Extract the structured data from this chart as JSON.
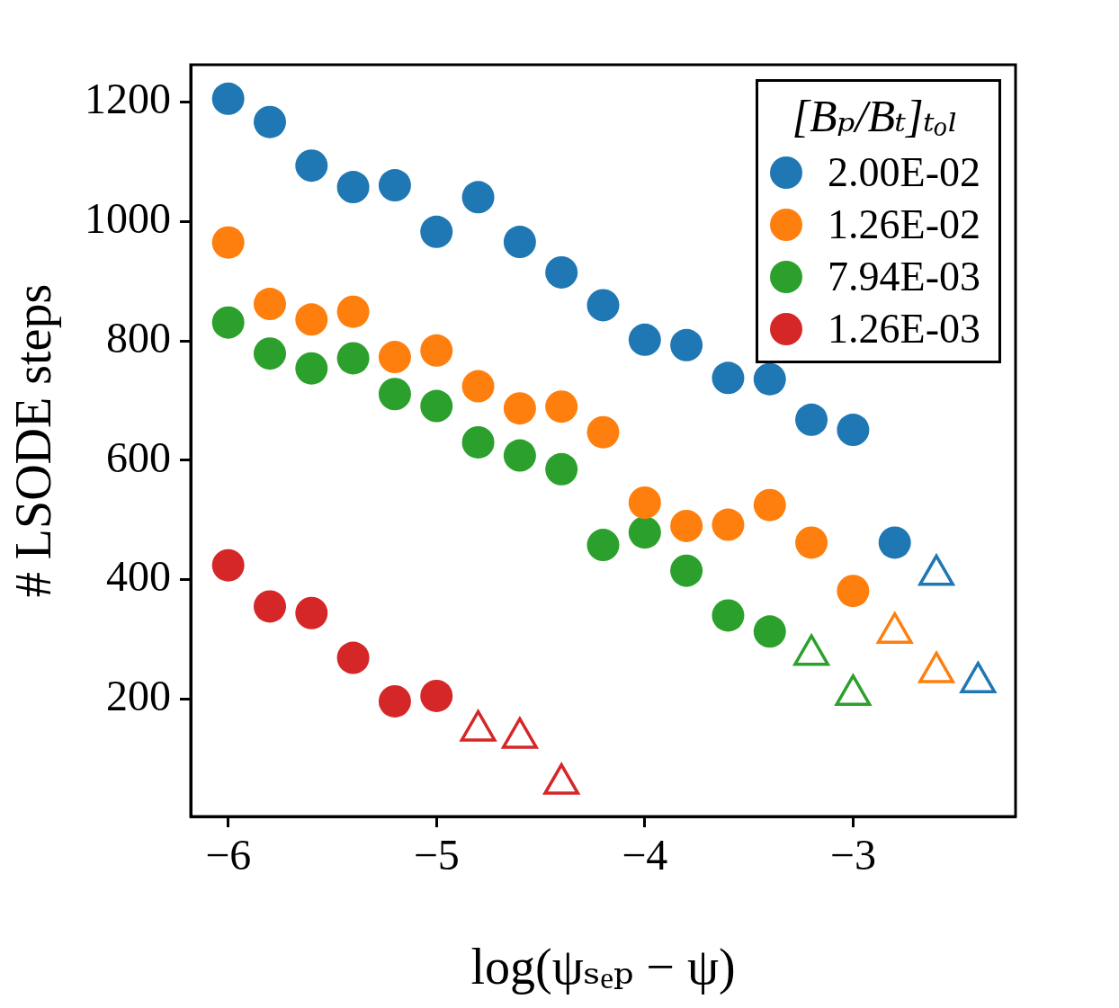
{
  "chart_data": {
    "type": "scatter",
    "xlabel": "log(ψₛₑₚ − ψ)",
    "ylabel": "# LSODE steps",
    "legend_title": "[Bₚ/Bₜ]ₜₒₗ",
    "legend": "top right",
    "marker": "circle",
    "xlim": [
      -6.18,
      -2.22
    ],
    "xticks": [
      {
        "value": -6,
        "label": "−6"
      },
      {
        "value": -5,
        "label": "−5"
      },
      {
        "value": -4,
        "label": "−4"
      },
      {
        "value": -3,
        "label": "−3"
      }
    ],
    "ylim": [
      3,
      1263
    ],
    "yticks": [
      200,
      400,
      600,
      800,
      1000,
      1200
    ],
    "series": [
      {
        "name": "2.00E-02",
        "color": "#1f77b4",
        "x": [
          -6,
          -5.8,
          -5.6,
          -5.4,
          -5.2,
          -5,
          -4.8,
          -4.6,
          -4.4,
          -4.2,
          -4,
          -3.8,
          -3.6,
          -3.4,
          -3.2,
          -3,
          -2.8
        ],
        "values": [
          1206,
          1167,
          1094,
          1058,
          1061,
          983,
          1041,
          966,
          915,
          860,
          802,
          793,
          738,
          736,
          668,
          651,
          462
        ]
      },
      {
        "color": "#1f77b4",
        "marker": "triangle",
        "x": [
          -2.6,
          -2.4
        ],
        "values": [
          408,
          228
        ]
      },
      {
        "name": "1.26E-02",
        "color": "#ff7f0e",
        "x": [
          -6,
          -5.8,
          -5.6,
          -5.4,
          -5.2,
          -5,
          -4.8,
          -4.6,
          -4.4,
          -4.2,
          -4,
          -3.8,
          -3.6,
          -3.4,
          -3.2,
          -3
        ],
        "values": [
          965,
          862,
          836,
          849,
          773,
          784,
          724,
          687,
          690,
          647,
          529,
          490,
          492,
          525,
          462,
          381
        ]
      },
      {
        "color": "#ff7f0e",
        "marker": "triangle",
        "x": [
          -2.8,
          -2.6
        ],
        "values": [
          311,
          245
        ]
      },
      {
        "name": "7.94E-03",
        "color": "#2ca02c",
        "x": [
          -6,
          -5.8,
          -5.6,
          -5.4,
          -5.2,
          -5,
          -4.8,
          -4.6,
          -4.4,
          -4.2,
          -4,
          -3.8,
          -3.6,
          -3.4
        ],
        "values": [
          831,
          779,
          754,
          771,
          711,
          691,
          630,
          608,
          585,
          458,
          479,
          415,
          340,
          313
        ]
      },
      {
        "color": "#2ca02c",
        "marker": "triangle",
        "x": [
          -3.2,
          -3
        ],
        "values": [
          274,
          207
        ]
      },
      {
        "name": "1.26E-03",
        "color": "#d62728",
        "x": [
          -6,
          -5.8,
          -5.6,
          -5.4,
          -5.2,
          -5
        ],
        "values": [
          424,
          355,
          344,
          269,
          196,
          205
        ]
      },
      {
        "color": "#d62728",
        "marker": "triangle",
        "x": [
          -4.8,
          -4.6,
          -4.4
        ],
        "values": [
          147,
          135,
          58
        ]
      }
    ]
  }
}
